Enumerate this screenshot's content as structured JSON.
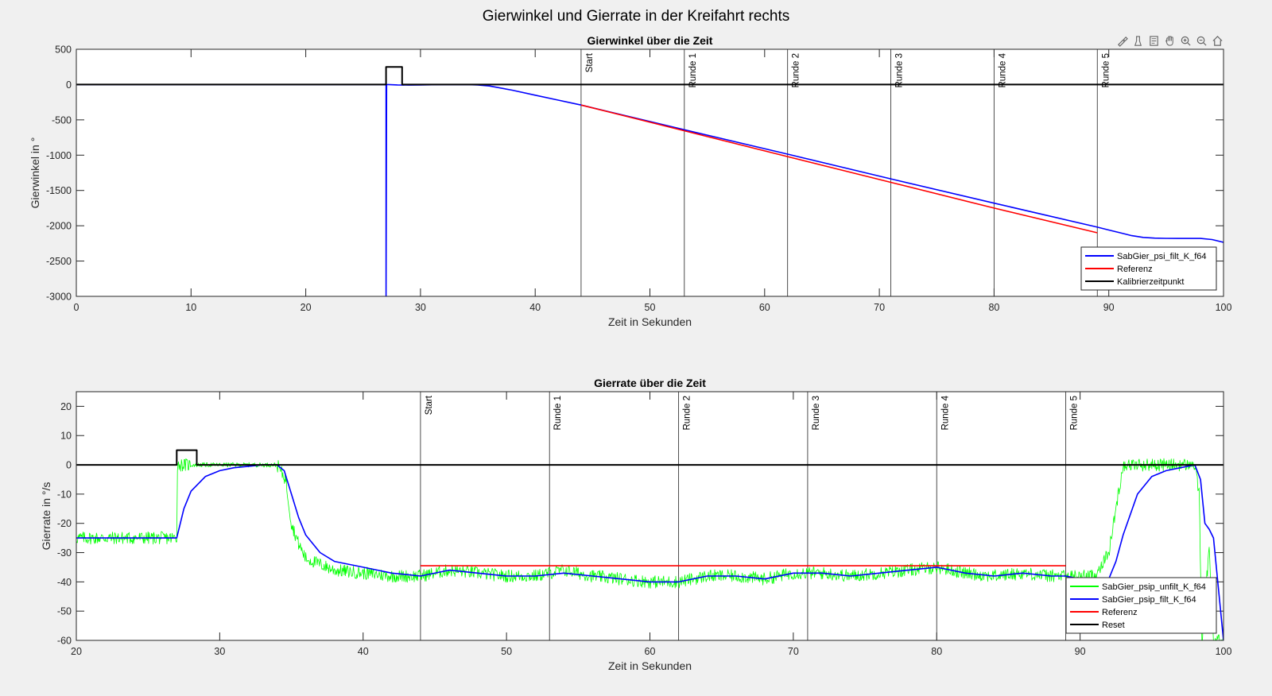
{
  "figure_title": "Gierwinkel und Gierrate in der Kreifahrt rechts",
  "toolbar": {
    "icons": [
      "brush-icon",
      "data-tips-icon",
      "data-cursor-icon",
      "pan-icon",
      "zoom-in-icon",
      "zoom-out-icon",
      "home-icon"
    ]
  },
  "colors": {
    "background": "#f0f0f0",
    "axes_bg": "#ffffff",
    "blue": "#0000ff",
    "red": "#ff0000",
    "green": "#00ff00",
    "black": "#000000"
  },
  "chart_data": [
    {
      "type": "line",
      "title": "Gierwinkel über die Zeit",
      "xlabel": "Zeit in Sekunden",
      "ylabel": "Gierwinkel in °",
      "xlim": [
        0,
        100
      ],
      "ylim": [
        -3000,
        500
      ],
      "xticks": [
        0,
        10,
        20,
        30,
        40,
        50,
        60,
        70,
        80,
        90,
        100
      ],
      "yticks": [
        500,
        0,
        -500,
        -1000,
        -1500,
        -2000,
        -2500,
        -3000
      ],
      "grid": false,
      "legend_position": "bottom-right",
      "vertical_markers": [
        {
          "x": 44,
          "label": "Start"
        },
        {
          "x": 53,
          "label": "Runde 1"
        },
        {
          "x": 62,
          "label": "Runde 2"
        },
        {
          "x": 71,
          "label": "Runde 3"
        },
        {
          "x": 80,
          "label": "Runde 4"
        },
        {
          "x": 89,
          "label": "Runde 5"
        }
      ],
      "series": [
        {
          "name": "SabGier_psi_filt_K_f64",
          "color": "#0000ff",
          "x": [
            0,
            27,
            27,
            27.05,
            27.2,
            28,
            29,
            30,
            31,
            32,
            33,
            34,
            35,
            36,
            38,
            40,
            42,
            44,
            53,
            62,
            71,
            80,
            89,
            90,
            91,
            92,
            93,
            94,
            95,
            96,
            97,
            98,
            99,
            100
          ],
          "y": [
            0,
            0,
            -3000,
            0,
            0,
            -5,
            -8,
            -5,
            -3,
            -2,
            -2,
            -1,
            -5,
            -20,
            -80,
            -150,
            -220,
            -290,
            -640,
            -985,
            -1335,
            -1680,
            -2020,
            -2060,
            -2100,
            -2140,
            -2165,
            -2175,
            -2178,
            -2180,
            -2180,
            -2180,
            -2195,
            -2235
          ]
        },
        {
          "name": "Referenz",
          "color": "#ff0000",
          "x": [
            44,
            53,
            62,
            71,
            80,
            89
          ],
          "y": [
            -290,
            -655,
            -1020,
            -1385,
            -1750,
            -2100
          ]
        },
        {
          "name": "Kalibrierzeitpunkt",
          "color": "#000000",
          "x": [
            0,
            27,
            27,
            28.4,
            28.4,
            100
          ],
          "y": [
            0,
            0,
            250,
            250,
            0,
            0
          ]
        }
      ]
    },
    {
      "type": "line",
      "title": "Gierrate über die Zeit",
      "xlabel": "Zeit in Sekunden",
      "ylabel": "Gierrate in °/s",
      "xlim": [
        20,
        100
      ],
      "ylim": [
        -60,
        25
      ],
      "xticks": [
        20,
        30,
        40,
        50,
        60,
        70,
        80,
        90,
        100
      ],
      "yticks": [
        20,
        10,
        0,
        -10,
        -20,
        -30,
        -40,
        -50,
        -60
      ],
      "grid": false,
      "legend_position": "bottom-right",
      "vertical_markers": [
        {
          "x": 44,
          "label": "Start"
        },
        {
          "x": 53,
          "label": "Runde 1"
        },
        {
          "x": 62,
          "label": "Runde 2"
        },
        {
          "x": 71,
          "label": "Runde 3"
        },
        {
          "x": 80,
          "label": "Runde 4"
        },
        {
          "x": 89,
          "label": "Runde 5"
        }
      ],
      "series": [
        {
          "name": "SabGier_psip_unfilt_K_f64",
          "color": "#00ff00",
          "noise_amplitude": 2.2,
          "x": [
            20,
            27,
            27.05,
            28,
            29,
            30,
            31,
            32,
            33,
            34,
            34.6,
            35,
            35.5,
            36,
            37,
            38,
            40,
            42,
            44,
            46,
            48,
            50,
            52,
            54,
            56,
            58,
            60,
            62,
            64,
            66,
            68,
            70,
            72,
            74,
            76,
            78,
            80,
            82,
            84,
            86,
            88,
            90,
            91,
            92,
            93,
            95,
            97,
            98,
            98.3,
            98.5,
            98.8,
            99,
            99.3,
            99.6,
            100
          ],
          "y": [
            -25,
            -25,
            0,
            0,
            0,
            0,
            0,
            0,
            0,
            0,
            -5,
            -20,
            -27,
            -32,
            -34,
            -36,
            -37,
            -38,
            -38,
            -36,
            -37,
            -38,
            -38,
            -36,
            -38,
            -39,
            -40,
            -40,
            -38,
            -38,
            -39,
            -37,
            -37,
            -38,
            -37,
            -36,
            -35,
            -37,
            -38,
            -37,
            -38,
            -38,
            -38,
            -30,
            0,
            0,
            0,
            0,
            -10,
            -60,
            -40,
            -30,
            -60,
            -60,
            -60
          ]
        },
        {
          "name": "SabGier_psip_filt_K_f64",
          "color": "#0000ff",
          "x": [
            20,
            27,
            27.5,
            28,
            29,
            30,
            31,
            32,
            33,
            34,
            34.5,
            35,
            35.5,
            36,
            37,
            38,
            40,
            42,
            44,
            46,
            48,
            50,
            52,
            54,
            56,
            58,
            60,
            62,
            64,
            66,
            68,
            70,
            72,
            74,
            76,
            78,
            80,
            82,
            84,
            86,
            88,
            89,
            91,
            92,
            92.5,
            93,
            94,
            95,
            96,
            97,
            98,
            98.4,
            98.7,
            99,
            99.3,
            99.6,
            100
          ],
          "y": [
            -25,
            -25,
            -15,
            -9,
            -4,
            -2,
            -1,
            -0.5,
            0,
            0,
            -2,
            -10,
            -18,
            -24,
            -30,
            -33,
            -35,
            -37,
            -38,
            -36,
            -37,
            -38,
            -38,
            -37,
            -38,
            -39,
            -40,
            -40,
            -38,
            -38,
            -39,
            -37,
            -37,
            -38,
            -37,
            -36,
            -35,
            -37,
            -38,
            -37,
            -38,
            -38,
            -40,
            -39,
            -33,
            -24,
            -10,
            -4,
            -2,
            -1,
            0,
            -5,
            -20,
            -22,
            -25,
            -40,
            -60
          ]
        },
        {
          "name": "Referenz",
          "color": "#ff0000",
          "x": [
            44,
            89
          ],
          "y": [
            -34.5,
            -34.5
          ]
        },
        {
          "name": "Reset",
          "color": "#000000",
          "x": [
            20,
            27,
            27,
            28.4,
            28.4,
            100
          ],
          "y": [
            0,
            0,
            5,
            5,
            0,
            0
          ]
        }
      ]
    }
  ]
}
